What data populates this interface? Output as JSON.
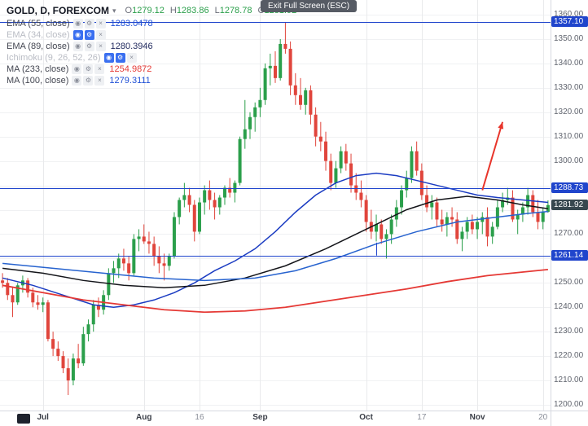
{
  "header": {
    "title": "GOLD, D, FOREXCOM",
    "value_color": "#2b9f4b",
    "ohlc": {
      "o": {
        "k": "O",
        "v": "1279.12"
      },
      "h": {
        "k": "H",
        "v": "1283.86"
      },
      "l": {
        "k": "L",
        "v": "1278.78"
      },
      "c": {
        "k": "C",
        "v": "1281.92"
      }
    }
  },
  "tooltip": {
    "text": "Exit Full Screen (ESC)"
  },
  "icons": {
    "eye": "◉",
    "gear": "⚙",
    "close": "×",
    "caret": "▾"
  },
  "legend": {
    "items": [
      {
        "label": "EMA (55, close)",
        "value": "1283.0478",
        "value_color": "#1e4fd6",
        "hidden": false
      },
      {
        "label": "EMA (34, close)",
        "value": "",
        "value_color": "",
        "hidden": true
      },
      {
        "label": "EMA (89, close)",
        "value": "1280.3946",
        "value_color": "#222b5f",
        "hidden": false
      },
      {
        "label": "Ichimoku (9, 26, 52, 26)",
        "value": "",
        "value_color": "",
        "hidden": true
      },
      {
        "label": "MA (233, close)",
        "value": "1254.9872",
        "value_color": "#e53935",
        "hidden": false
      },
      {
        "label": "MA (100, close)",
        "value": "1279.3111",
        "value_color": "#1e4fd6",
        "hidden": false
      }
    ]
  },
  "chart_data": {
    "type": "candlestick",
    "title": "GOLD, D, FOREXCOM",
    "symbol": "GOLD",
    "interval": "D",
    "exchange": "FOREXCOM",
    "ohlc_last": {
      "open": 1279.12,
      "high": 1283.86,
      "low": 1278.78,
      "close": 1281.92
    },
    "grid": true,
    "legend_position": "top-left",
    "y_axis": {
      "min": 1200,
      "max": 1360,
      "step": 10
    },
    "x_axis": {
      "labels": [
        {
          "text": "Jul",
          "index": 8,
          "type": "month"
        },
        {
          "text": "Aug",
          "index": 28,
          "type": "month"
        },
        {
          "text": "16",
          "index": 39,
          "type": "day"
        },
        {
          "text": "Sep",
          "index": 51,
          "type": "month"
        },
        {
          "text": "Oct",
          "index": 72,
          "type": "month"
        },
        {
          "text": "17",
          "index": 83,
          "type": "day"
        },
        {
          "text": "Nov",
          "index": 94,
          "type": "month"
        },
        {
          "text": "20",
          "index": 107,
          "type": "day"
        }
      ]
    },
    "colors": {
      "up": "#2b9f4b",
      "down": "#e0453c",
      "grid_h": "#f0f1f3",
      "grid_v": "#e9eaec",
      "level_line": "#2045cc",
      "last_badge": "#37474f",
      "axis_text": "#60646e"
    },
    "candles": [
      [
        1251,
        1254,
        1248,
        1250
      ],
      [
        1250,
        1252,
        1243,
        1245
      ],
      [
        1245,
        1248,
        1236,
        1242
      ],
      [
        1242,
        1250,
        1241,
        1249
      ],
      [
        1249,
        1253,
        1246,
        1251
      ],
      [
        1251,
        1252,
        1244,
        1246
      ],
      [
        1246,
        1248,
        1240,
        1242
      ],
      [
        1242,
        1245,
        1239,
        1241
      ],
      [
        1241,
        1244,
        1238,
        1242
      ],
      [
        1242,
        1243,
        1226,
        1227
      ],
      [
        1227,
        1230,
        1220,
        1223
      ],
      [
        1223,
        1226,
        1218,
        1220
      ],
      [
        1220,
        1222,
        1213,
        1215
      ],
      [
        1215,
        1219,
        1204,
        1210
      ],
      [
        1210,
        1221,
        1208,
        1219
      ],
      [
        1219,
        1225,
        1215,
        1217
      ],
      [
        1217,
        1232,
        1216,
        1229
      ],
      [
        1229,
        1235,
        1226,
        1233
      ],
      [
        1233,
        1243,
        1230,
        1241
      ],
      [
        1241,
        1244,
        1236,
        1239
      ],
      [
        1239,
        1247,
        1237,
        1245
      ],
      [
        1245,
        1256,
        1243,
        1254
      ],
      [
        1254,
        1259,
        1250,
        1256
      ],
      [
        1256,
        1262,
        1252,
        1260
      ],
      [
        1260,
        1264,
        1255,
        1258
      ],
      [
        1258,
        1261,
        1251,
        1254
      ],
      [
        1254,
        1270,
        1253,
        1268
      ],
      [
        1268,
        1272,
        1263,
        1269
      ],
      [
        1269,
        1274,
        1266,
        1267
      ],
      [
        1267,
        1271,
        1262,
        1266
      ],
      [
        1266,
        1269,
        1257,
        1261
      ],
      [
        1261,
        1265,
        1254,
        1258
      ],
      [
        1258,
        1262,
        1251,
        1257
      ],
      [
        1257,
        1262,
        1255,
        1261
      ],
      [
        1261,
        1279,
        1260,
        1277
      ],
      [
        1277,
        1285,
        1274,
        1284
      ],
      [
        1284,
        1291,
        1281,
        1286
      ],
      [
        1286,
        1289,
        1279,
        1282
      ],
      [
        1282,
        1284,
        1267,
        1271
      ],
      [
        1271,
        1285,
        1270,
        1283
      ],
      [
        1283,
        1290,
        1278,
        1288
      ],
      [
        1288,
        1292,
        1280,
        1284
      ],
      [
        1284,
        1287,
        1276,
        1281
      ],
      [
        1281,
        1286,
        1278,
        1285
      ],
      [
        1285,
        1290,
        1282,
        1289
      ],
      [
        1289,
        1293,
        1285,
        1287
      ],
      [
        1287,
        1292,
        1283,
        1291
      ],
      [
        1291,
        1310,
        1290,
        1309
      ],
      [
        1309,
        1325,
        1305,
        1313
      ],
      [
        1313,
        1320,
        1309,
        1318
      ],
      [
        1318,
        1324,
        1312,
        1322
      ],
      [
        1322,
        1330,
        1318,
        1325
      ],
      [
        1325,
        1340,
        1323,
        1338
      ],
      [
        1338,
        1344,
        1331,
        1339
      ],
      [
        1339,
        1345,
        1332,
        1334
      ],
      [
        1334,
        1350,
        1333,
        1348
      ],
      [
        1348,
        1357,
        1344,
        1346
      ],
      [
        1346,
        1349,
        1327,
        1331
      ],
      [
        1331,
        1336,
        1323,
        1327
      ],
      [
        1327,
        1334,
        1321,
        1323
      ],
      [
        1323,
        1330,
        1319,
        1329
      ],
      [
        1329,
        1331,
        1315,
        1319
      ],
      [
        1319,
        1322,
        1306,
        1310
      ],
      [
        1310,
        1316,
        1304,
        1308
      ],
      [
        1308,
        1312,
        1296,
        1300
      ],
      [
        1300,
        1303,
        1288,
        1291
      ],
      [
        1291,
        1300,
        1289,
        1297
      ],
      [
        1297,
        1306,
        1295,
        1304
      ],
      [
        1304,
        1307,
        1296,
        1299
      ],
      [
        1299,
        1303,
        1287,
        1290
      ],
      [
        1290,
        1295,
        1284,
        1287
      ],
      [
        1287,
        1292,
        1281,
        1284
      ],
      [
        1284,
        1286,
        1271,
        1275
      ],
      [
        1275,
        1280,
        1268,
        1271
      ],
      [
        1271,
        1278,
        1267,
        1274
      ],
      [
        1274,
        1276,
        1266,
        1268
      ],
      [
        1268,
        1272,
        1260,
        1270
      ],
      [
        1270,
        1278,
        1266,
        1276
      ],
      [
        1276,
        1284,
        1273,
        1281
      ],
      [
        1281,
        1290,
        1278,
        1288
      ],
      [
        1288,
        1296,
        1285,
        1293
      ],
      [
        1293,
        1306,
        1291,
        1304
      ],
      [
        1304,
        1308,
        1294,
        1296
      ],
      [
        1296,
        1299,
        1284,
        1286
      ],
      [
        1286,
        1290,
        1279,
        1281
      ],
      [
        1281,
        1286,
        1276,
        1283
      ],
      [
        1283,
        1285,
        1273,
        1276
      ],
      [
        1276,
        1280,
        1271,
        1274
      ],
      [
        1274,
        1279,
        1269,
        1277
      ],
      [
        1277,
        1281,
        1273,
        1276
      ],
      [
        1276,
        1279,
        1266,
        1268
      ],
      [
        1268,
        1273,
        1263,
        1271
      ],
      [
        1271,
        1277,
        1268,
        1275
      ],
      [
        1275,
        1278,
        1270,
        1272
      ],
      [
        1272,
        1277,
        1268,
        1275
      ],
      [
        1275,
        1279,
        1270,
        1277
      ],
      [
        1277,
        1281,
        1265,
        1269
      ],
      [
        1269,
        1275,
        1266,
        1273
      ],
      [
        1273,
        1284,
        1272,
        1281
      ],
      [
        1281,
        1287,
        1279,
        1284
      ],
      [
        1284,
        1289,
        1282,
        1285
      ],
      [
        1285,
        1288,
        1275,
        1276
      ],
      [
        1276,
        1280,
        1270,
        1278
      ],
      [
        1278,
        1283,
        1275,
        1281
      ],
      [
        1281,
        1289,
        1278,
        1286
      ],
      [
        1286,
        1288,
        1277,
        1279
      ],
      [
        1279,
        1284,
        1272,
        1275
      ],
      [
        1275,
        1281,
        1272,
        1279
      ],
      [
        1279.12,
        1283.86,
        1278.78,
        1281.92
      ]
    ],
    "overlays": [
      {
        "name": "EMA 55",
        "color": "#1b3cc2",
        "width": 1.5,
        "points": [
          [
            0,
            1252
          ],
          [
            6,
            1249
          ],
          [
            12,
            1245
          ],
          [
            18,
            1241
          ],
          [
            22,
            1240
          ],
          [
            26,
            1241
          ],
          [
            30,
            1243
          ],
          [
            34,
            1246
          ],
          [
            38,
            1250
          ],
          [
            42,
            1255
          ],
          [
            46,
            1259
          ],
          [
            50,
            1264
          ],
          [
            54,
            1271
          ],
          [
            58,
            1279
          ],
          [
            62,
            1286
          ],
          [
            66,
            1291
          ],
          [
            70,
            1294
          ],
          [
            74,
            1295
          ],
          [
            78,
            1294
          ],
          [
            82,
            1292
          ],
          [
            86,
            1290
          ],
          [
            90,
            1288
          ],
          [
            94,
            1286
          ],
          [
            98,
            1285
          ],
          [
            103,
            1284
          ],
          [
            108,
            1283
          ]
        ]
      },
      {
        "name": "EMA 89",
        "color": "#14151a",
        "width": 1.5,
        "points": [
          [
            0,
            1256
          ],
          [
            8,
            1254
          ],
          [
            16,
            1251
          ],
          [
            24,
            1249
          ],
          [
            32,
            1248
          ],
          [
            40,
            1249
          ],
          [
            48,
            1252
          ],
          [
            56,
            1257
          ],
          [
            64,
            1264
          ],
          [
            72,
            1272
          ],
          [
            80,
            1280
          ],
          [
            86,
            1284
          ],
          [
            92,
            1285.5
          ],
          [
            98,
            1284
          ],
          [
            103,
            1282
          ],
          [
            108,
            1280.4
          ]
        ]
      },
      {
        "name": "MA 100",
        "color": "#2763cf",
        "width": 1.5,
        "points": [
          [
            0,
            1258
          ],
          [
            10,
            1256
          ],
          [
            20,
            1254
          ],
          [
            30,
            1252
          ],
          [
            40,
            1251
          ],
          [
            50,
            1252
          ],
          [
            58,
            1255
          ],
          [
            66,
            1260
          ],
          [
            74,
            1266
          ],
          [
            82,
            1271
          ],
          [
            90,
            1275
          ],
          [
            98,
            1277
          ],
          [
            104,
            1278.5
          ],
          [
            108,
            1279.3
          ]
        ]
      },
      {
        "name": "MA 233",
        "color": "#e53935",
        "width": 1.8,
        "points": [
          [
            0,
            1249
          ],
          [
            8,
            1246
          ],
          [
            16,
            1243
          ],
          [
            24,
            1241
          ],
          [
            32,
            1239
          ],
          [
            40,
            1238
          ],
          [
            48,
            1238.5
          ],
          [
            56,
            1240
          ],
          [
            64,
            1242.5
          ],
          [
            72,
            1245
          ],
          [
            80,
            1247.5
          ],
          [
            88,
            1250.5
          ],
          [
            96,
            1253
          ],
          [
            108,
            1255.5
          ]
        ]
      }
    ],
    "price_lines": [
      {
        "price": 1357.1,
        "label": "1357.10"
      },
      {
        "price": 1288.73,
        "label": "1288.73"
      },
      {
        "price": 1261.14,
        "label": "1261.14"
      }
    ],
    "last_price": {
      "price": 1281.92,
      "label": "1281.92"
    },
    "annotations": [
      {
        "type": "arrow",
        "from": [
          95,
          1288
        ],
        "to": [
          99,
          1316
        ],
        "color": "#e8352b",
        "width": 2
      },
      {
        "type": "vtick",
        "index": 74,
        "from_price": 1266.5,
        "to_price": 1261.2,
        "color": "#2045cc"
      }
    ]
  }
}
